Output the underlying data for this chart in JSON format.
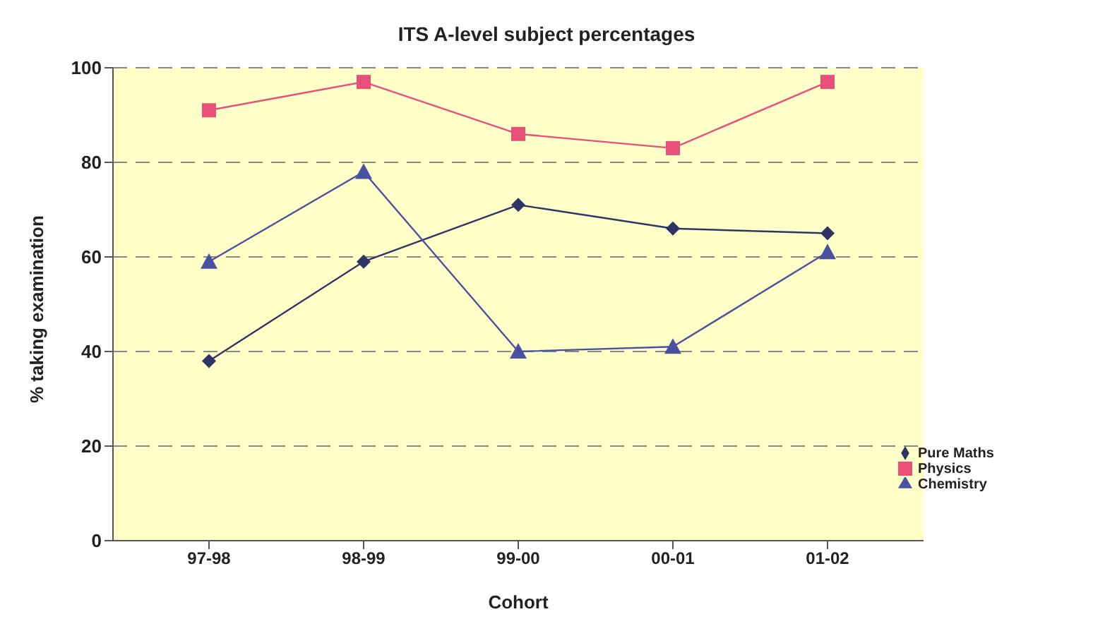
{
  "chart_data": {
    "type": "line",
    "title": "ITS A-level subject percentages",
    "xlabel": "Cohort",
    "ylabel": "% taking examination",
    "categories": [
      "97-98",
      "98-99",
      "99-00",
      "00-01",
      "01-02"
    ],
    "series": [
      {
        "name": "Pure Maths",
        "color": "#2e3566",
        "marker": "diamond",
        "values": [
          38,
          59,
          71,
          66,
          65
        ]
      },
      {
        "name": "Physics",
        "color": "#e8507a",
        "marker": "square",
        "values": [
          91,
          97,
          86,
          83,
          97
        ]
      },
      {
        "name": "Chemistry",
        "color": "#4a52a0",
        "marker": "triangle",
        "values": [
          59,
          78,
          40,
          41,
          61
        ]
      }
    ],
    "ylim": [
      0,
      100
    ],
    "yticks": [
      0,
      20,
      40,
      60,
      80,
      100
    ],
    "grid": "y",
    "legend": "bottom right"
  }
}
